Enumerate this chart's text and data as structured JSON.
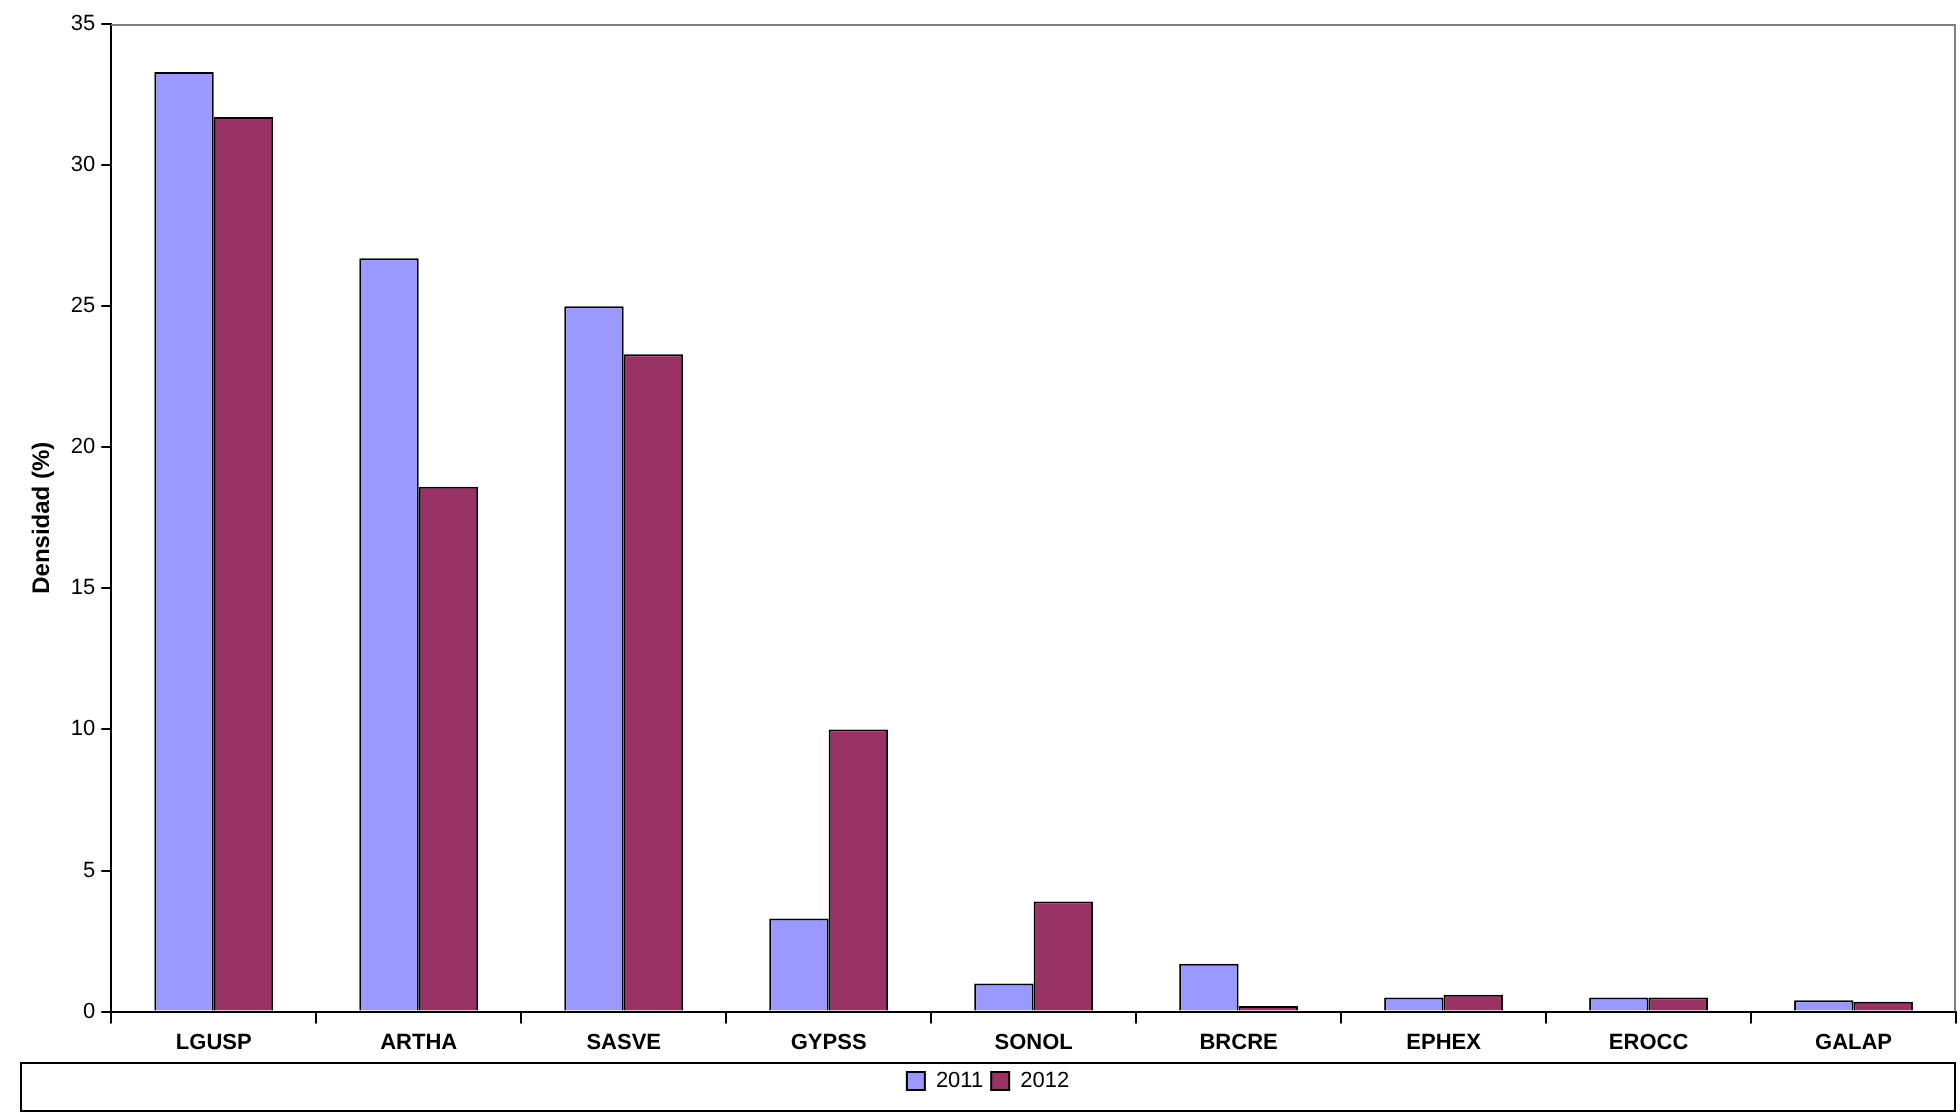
{
  "chart_data": {
    "type": "bar",
    "ylabel": "Densidad (%)",
    "categories": [
      "LGUSP",
      "ARTHA",
      "SASVE",
      "GYPSS",
      "SONOL",
      "BRCRE",
      "EPHEX",
      "EROCC",
      "GALAP"
    ],
    "series": [
      {
        "name": "2011",
        "color": "#9999ff",
        "values": [
          33.3,
          26.7,
          25.0,
          3.3,
          1.0,
          1.7,
          0.5,
          0.5,
          0.4
        ]
      },
      {
        "name": "2012",
        "color": "#993366",
        "values": [
          31.7,
          18.6,
          23.3,
          10.0,
          3.9,
          0.2,
          0.6,
          0.5,
          0.35
        ]
      }
    ],
    "ylim": [
      0,
      35
    ],
    "yticks": [
      0,
      5,
      10,
      15,
      20,
      25,
      30,
      35
    ],
    "grid": false,
    "legend": "bottom"
  }
}
